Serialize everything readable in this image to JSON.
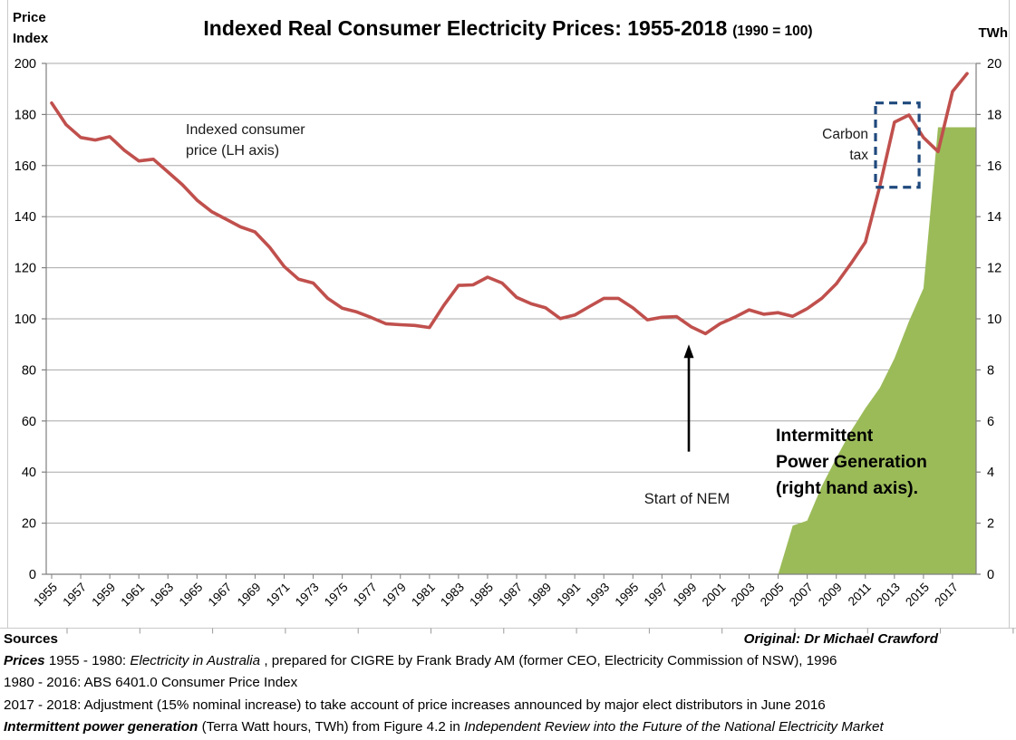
{
  "header": {
    "left_axis_unit": "Price\nIndex",
    "right_axis_unit": "TWh"
  },
  "chart_data": {
    "type": "line+area combo",
    "title": "Indexed Real Consumer Electricity Prices: 1955-2018",
    "title_suffix": "(1990 = 100)",
    "grid": "on",
    "colors": {
      "price_line": "#C0504D",
      "generation_area": "#9BBB59",
      "gridline": "#A8A8A8",
      "axis": "#7F7F7F",
      "carbon_tax_box": "#1F497D",
      "annotation_text": "#1a1a1a",
      "frame": "#C9C9C9",
      "frame_stub": "#9A9A9A"
    },
    "left_axis": {
      "label": "Price Index",
      "min": 0,
      "max": 200,
      "ticks": [
        200,
        180,
        160,
        140,
        120,
        100,
        80,
        60,
        40,
        20,
        0
      ]
    },
    "right_axis": {
      "label": "TWh",
      "min": 0,
      "max": 20,
      "ticks": [
        20,
        18,
        16,
        14,
        12,
        10,
        8,
        6,
        4,
        2,
        0
      ]
    },
    "x_axis": {
      "first_year": 1955,
      "last_year": 2018,
      "tick_years": [
        1955,
        1957,
        1959,
        1961,
        1963,
        1965,
        1967,
        1969,
        1971,
        1973,
        1975,
        1977,
        1979,
        1981,
        1983,
        1985,
        1987,
        1989,
        1991,
        1993,
        1995,
        1997,
        1999,
        2001,
        2003,
        2005,
        2007,
        2009,
        2011,
        2013,
        2015,
        2017
      ]
    },
    "series": [
      {
        "name": "Indexed consumer price (LH axis)",
        "type": "line",
        "axis": "left",
        "x": [
          1955,
          1956,
          1957,
          1958,
          1959,
          1960,
          1961,
          1962,
          1963,
          1964,
          1965,
          1966,
          1967,
          1968,
          1969,
          1970,
          1971,
          1972,
          1973,
          1974,
          1975,
          1976,
          1977,
          1978,
          1979,
          1980,
          1981,
          1982,
          1983,
          1984,
          1985,
          1986,
          1987,
          1988,
          1989,
          1990,
          1991,
          1992,
          1993,
          1994,
          1995,
          1996,
          1997,
          1998,
          1999,
          2000,
          2001,
          2002,
          2003,
          2004,
          2005,
          2006,
          2007,
          2008,
          2009,
          2010,
          2011,
          2012,
          2013,
          2014,
          2015,
          2016,
          2017,
          2018
        ],
        "values": [
          184.5,
          176,
          171,
          170,
          171.3,
          166,
          161.8,
          162.5,
          157.5,
          152.5,
          146.5,
          142,
          139,
          136,
          134,
          128,
          120.5,
          115.5,
          114,
          108,
          104.2,
          102.7,
          100.5,
          98.1,
          97.7,
          97.4,
          96.6,
          105.4,
          113.1,
          113.3,
          116.3,
          114,
          108.4,
          105.9,
          104.3,
          100.1,
          101.5,
          104.8,
          108,
          108,
          104.3,
          99.6,
          100.6,
          100.9,
          96.9,
          94.2,
          98.1,
          100.6,
          103.5,
          101.8,
          102.4,
          101,
          104,
          108,
          113.7,
          121.6,
          130,
          152,
          177,
          179.8,
          171,
          165.5,
          189,
          196
        ]
      },
      {
        "name": "Intermittent Power Generation (right hand axis)",
        "type": "area",
        "axis": "right",
        "x": [
          2005,
          2006,
          2007,
          2008,
          2009,
          2010,
          2011,
          2012,
          2013,
          2014,
          2015,
          2016,
          2017,
          2018
        ],
        "values": [
          0,
          1.9,
          2.1,
          3.45,
          4.55,
          5.6,
          6.5,
          7.3,
          8.45,
          9.9,
          11.2,
          17.5,
          17.5,
          17.5
        ]
      }
    ],
    "annotations": {
      "line_label_lines": [
        "Indexed consumer",
        "price (LH axis)"
      ],
      "area_label_lines": [
        "Intermittent",
        "Power Generation",
        "(right hand axis)."
      ],
      "carbon_tax_label_lines": [
        "Carbon",
        "tax"
      ],
      "carbon_tax_box": {
        "year_start": 2011.7,
        "year_end": 2014.7,
        "value_low": 151.5,
        "value_high": 184.5
      },
      "nem_label": "Start of NEM",
      "nem_arrow": {
        "year": 1998.85,
        "value_from": 48,
        "value_to": 90
      }
    }
  },
  "footer": {
    "sources_label": "Sources",
    "original_credit": "Original:  Dr Michael Crawford",
    "rich_lines": [
      [
        {
          "t": "Prices",
          "b": 1,
          "i": 1
        },
        {
          "t": " 1955 - 1980: "
        },
        {
          "t": "Electricity in Australia",
          "i": 1
        },
        {
          "t": " , prepared for CIGRE by Frank Brady AM (former CEO, Electricity Commission of NSW), 1996"
        }
      ],
      [
        {
          "t": "1980 - 2016: ABS 6401.0 Consumer Price Index"
        }
      ],
      [
        {
          "t": "2017 - 2018: Adjustment (15% nominal increase) to take account of price increases announced by major elect distributors in June 2016"
        }
      ],
      [
        {
          "t": "Intermittent power generation",
          "b": 1,
          "i": 1
        },
        {
          "t": "  (Terra Watt hours, TWh) from Figure 4.2 in "
        },
        {
          "t": "Independent Review into the Future of the National Electricity Market",
          "i": 1
        }
      ]
    ]
  }
}
